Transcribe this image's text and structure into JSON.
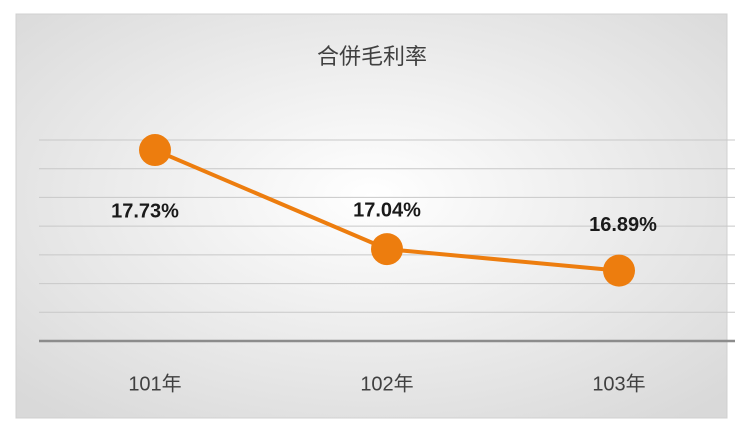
{
  "chart_data": {
    "type": "line",
    "title": "合併毛利率",
    "categories": [
      "101年",
      "102年",
      "103年"
    ],
    "series": [
      {
        "name": "合併毛利率",
        "color": "#ed7d0e",
        "values": [
          17.73,
          17.04,
          16.89
        ],
        "value_labels": [
          "17.73%",
          "17.04%",
          "16.89%"
        ]
      }
    ],
    "ylim": [
      16.4,
      17.8
    ],
    "yticks": [
      16.6,
      16.8,
      17.0,
      17.2,
      17.4,
      17.6,
      17.8
    ],
    "grid": true
  }
}
